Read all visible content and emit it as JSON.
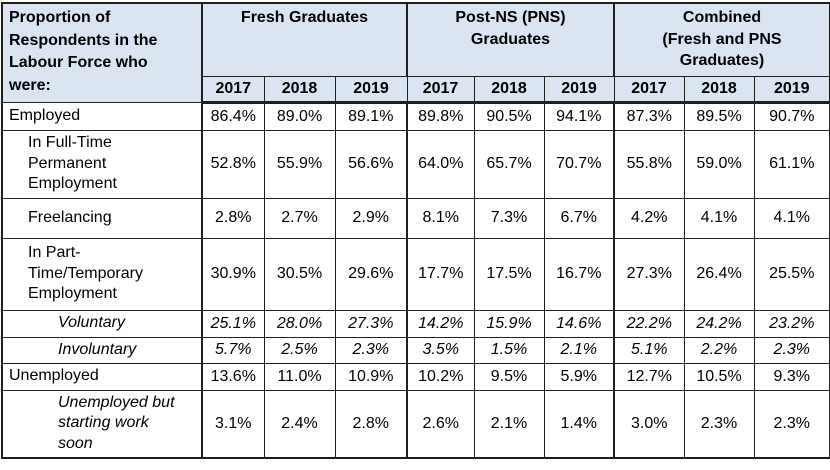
{
  "colors": {
    "header_bg": "#dbe5f1",
    "border": "#1f1f1f",
    "text": "#000000"
  },
  "table": {
    "corner_label": "Proportion of\nRespondents in the\nLabour Force who\nwere:",
    "groups": [
      {
        "label": "Fresh Graduates",
        "years": [
          "2017",
          "2018",
          "2019"
        ]
      },
      {
        "label": "Post-NS (PNS)\nGraduates",
        "years": [
          "2017",
          "2018",
          "2019"
        ]
      },
      {
        "label": "Combined\n(Fresh and PNS\nGraduates)",
        "years": [
          "2017",
          "2018",
          "2019"
        ]
      }
    ],
    "rows": [
      {
        "label": "Employed",
        "indent": 0,
        "label_italic": false,
        "values_italic": false,
        "values": [
          "86.4%",
          "89.0%",
          "89.1%",
          "89.8%",
          "90.5%",
          "94.1%",
          "87.3%",
          "89.5%",
          "90.7%"
        ]
      },
      {
        "label": "In Full-Time\nPermanent\nEmployment",
        "indent": 1,
        "label_italic": false,
        "values_italic": false,
        "values": [
          "52.8%",
          "55.9%",
          "56.6%",
          "64.0%",
          "65.7%",
          "70.7%",
          "55.8%",
          "59.0%",
          "61.1%"
        ]
      },
      {
        "label": "Freelancing",
        "indent": 1,
        "label_italic": false,
        "values_italic": false,
        "values": [
          "2.8%",
          "2.7%",
          "2.9%",
          "8.1%",
          "7.3%",
          "6.7%",
          "4.2%",
          "4.1%",
          "4.1%"
        ]
      },
      {
        "label": "In Part-\nTime/Temporary\nEmployment",
        "indent": 1,
        "label_italic": false,
        "values_italic": false,
        "values": [
          "30.9%",
          "30.5%",
          "29.6%",
          "17.7%",
          "17.5%",
          "16.7%",
          "27.3%",
          "26.4%",
          "25.5%"
        ]
      },
      {
        "label": "Voluntary",
        "indent": 2,
        "label_italic": true,
        "values_italic": true,
        "values": [
          "25.1%",
          "28.0%",
          "27.3%",
          "14.2%",
          "15.9%",
          "14.6%",
          "22.2%",
          "24.2%",
          "23.2%"
        ]
      },
      {
        "label": "Involuntary",
        "indent": 2,
        "label_italic": true,
        "values_italic": true,
        "values": [
          "5.7%",
          "2.5%",
          "2.3%",
          "3.5%",
          "1.5%",
          "2.1%",
          "5.1%",
          "2.2%",
          "2.3%"
        ]
      },
      {
        "label": "Unemployed",
        "indent": 0,
        "label_italic": false,
        "values_italic": false,
        "values": [
          "13.6%",
          "11.0%",
          "10.9%",
          "10.2%",
          "9.5%",
          "5.9%",
          "12.7%",
          "10.5%",
          "9.3%"
        ]
      },
      {
        "label": "Unemployed but\nstarting work\nsoon",
        "indent": 2,
        "label_italic": true,
        "values_italic": false,
        "values": [
          "3.1%",
          "2.4%",
          "2.8%",
          "2.6%",
          "2.1%",
          "1.4%",
          "3.0%",
          "2.3%",
          "2.3%"
        ]
      }
    ]
  }
}
